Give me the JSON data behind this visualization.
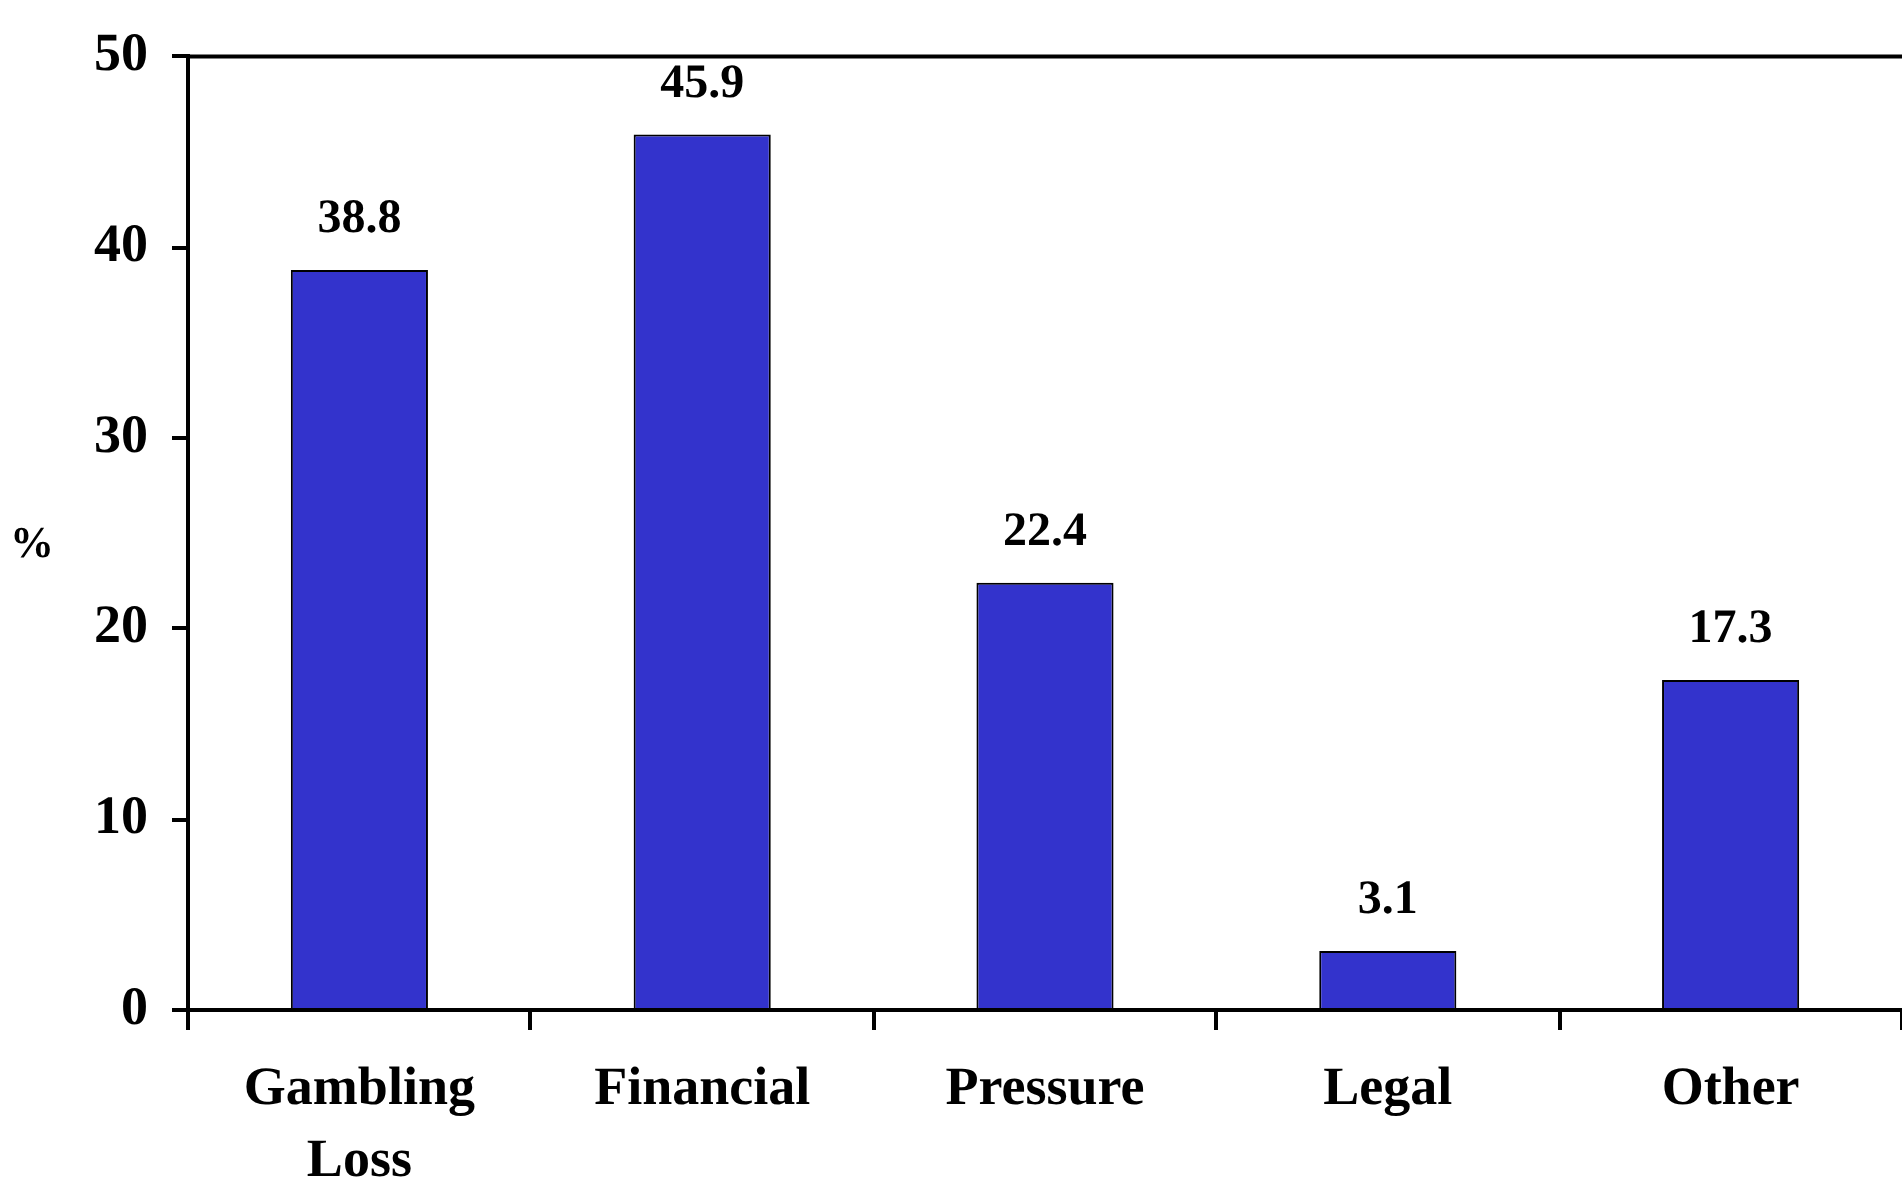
{
  "chart_data": {
    "type": "bar",
    "ylabel": "%",
    "categories": [
      "Gambling Loss",
      "Financial",
      "Pressure",
      "Legal",
      "Other"
    ],
    "values": [
      38.8,
      45.9,
      22.4,
      3.1,
      17.3
    ],
    "color": "#3333cc",
    "ylim": [
      0,
      50
    ],
    "yticks": [
      0,
      10,
      20,
      30,
      40,
      50
    ],
    "grid": false,
    "legend": false,
    "data_labels": true
  }
}
